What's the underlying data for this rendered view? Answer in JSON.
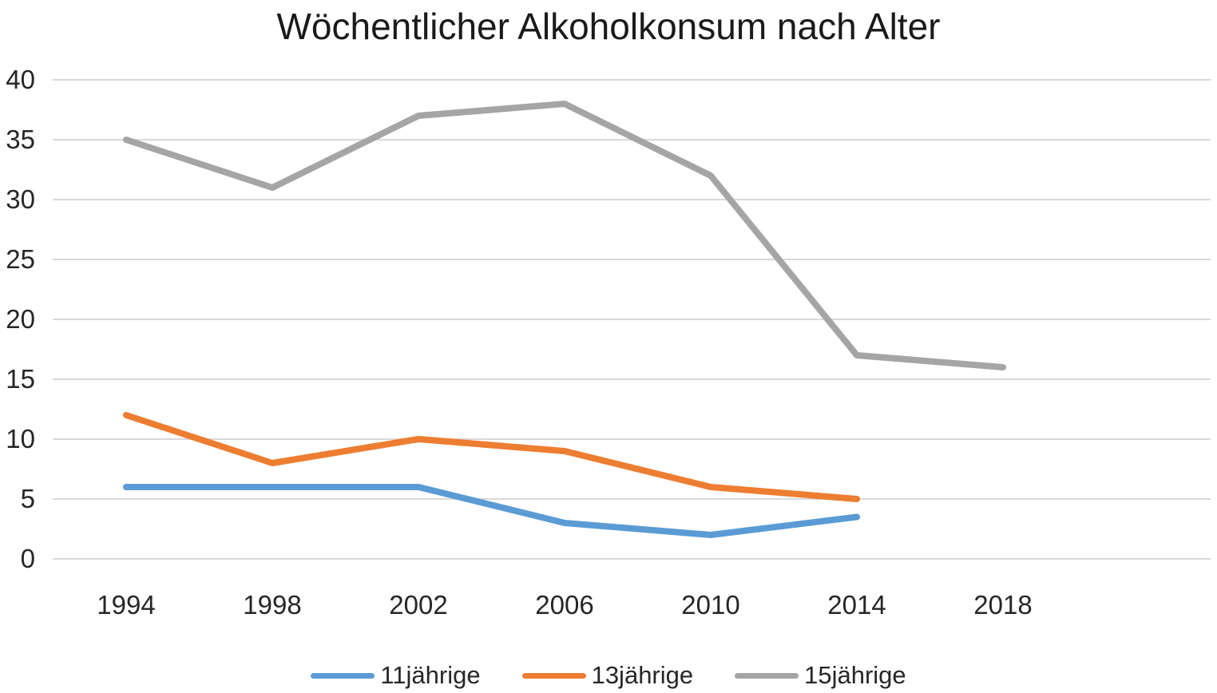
{
  "title": "Wöchentlicher Alkoholkonsum nach Alter",
  "colors": {
    "series_blue": "#5B9BD5",
    "series_orange": "#ED7D31",
    "series_gray": "#A5A5A5",
    "gridline": "#D9D9D9",
    "text": "#262626",
    "title_text": "#1a1a1a",
    "background": "#ffffff"
  },
  "chart_data": {
    "type": "line",
    "title": "Wöchentlicher Alkoholkonsum nach Alter",
    "categories": [
      "1994",
      "1998",
      "2002",
      "2006",
      "2010",
      "2014",
      "2018"
    ],
    "series": [
      {
        "name": "11jährige",
        "color": "#5B9BD5",
        "values": [
          6,
          6,
          6,
          3,
          2,
          3.5,
          null
        ]
      },
      {
        "name": "13jährige",
        "color": "#ED7D31",
        "values": [
          12,
          8,
          10,
          9,
          6,
          5,
          null
        ]
      },
      {
        "name": "15jährige",
        "color": "#A5A5A5",
        "values": [
          35,
          31,
          37,
          38,
          32,
          17,
          16
        ]
      }
    ],
    "xlabel": "",
    "ylabel": "",
    "ylim": [
      0,
      40
    ],
    "yticks": [
      0,
      5,
      10,
      15,
      20,
      25,
      30,
      35,
      40
    ],
    "grid": "horizontal-only",
    "legend_position": "bottom"
  }
}
